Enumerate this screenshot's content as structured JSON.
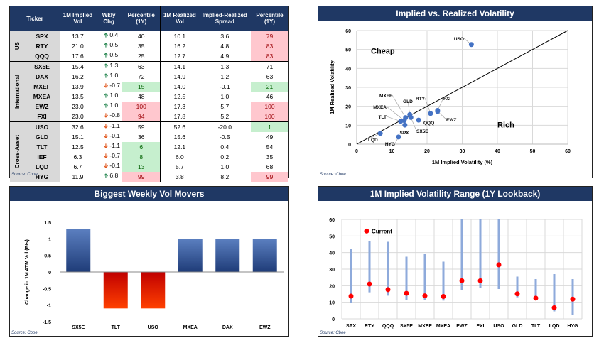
{
  "table": {
    "headers": [
      "Ticker",
      "1M Implied Vol",
      "Wkly Chg",
      "Percentile (1Y)",
      "1M Realized Vol",
      "Implied-Realized Spread",
      "Percentile (1Y)"
    ],
    "groups": [
      {
        "name": "US",
        "rows": [
          {
            "ticker": "SPX",
            "iv": "13.7",
            "chg": "0.4",
            "dir": "up",
            "pct": "40",
            "pct_c": "",
            "rv": "10.1",
            "spr": "3.6",
            "pct2": "79",
            "pct2_c": "red"
          },
          {
            "ticker": "RTY",
            "iv": "21.0",
            "chg": "0.5",
            "dir": "up",
            "pct": "35",
            "pct_c": "",
            "rv": "16.2",
            "spr": "4.8",
            "pct2": "83",
            "pct2_c": "red"
          },
          {
            "ticker": "QQQ",
            "iv": "17.6",
            "chg": "0.5",
            "dir": "up",
            "pct": "25",
            "pct_c": "",
            "rv": "12.7",
            "spr": "4.9",
            "pct2": "83",
            "pct2_c": "red"
          }
        ]
      },
      {
        "name": "International",
        "rows": [
          {
            "ticker": "SX5E",
            "iv": "15.4",
            "chg": "1.3",
            "dir": "up",
            "pct": "63",
            "pct_c": "",
            "rv": "14.1",
            "spr": "1.3",
            "pct2": "71",
            "pct2_c": ""
          },
          {
            "ticker": "DAX",
            "iv": "16.2",
            "chg": "1.0",
            "dir": "up",
            "pct": "72",
            "pct_c": "",
            "rv": "14.9",
            "spr": "1.2",
            "pct2": "63",
            "pct2_c": ""
          },
          {
            "ticker": "MXEF",
            "iv": "13.9",
            "chg": "-0.7",
            "dir": "dn",
            "pct": "15",
            "pct_c": "grn",
            "rv": "14.0",
            "spr": "-0.1",
            "pct2": "21",
            "pct2_c": "grn"
          },
          {
            "ticker": "MXEA",
            "iv": "13.5",
            "chg": "1.0",
            "dir": "up",
            "pct": "48",
            "pct_c": "",
            "rv": "12.5",
            "spr": "1.0",
            "pct2": "46",
            "pct2_c": ""
          },
          {
            "ticker": "EWZ",
            "iv": "23.0",
            "chg": "1.0",
            "dir": "up",
            "pct": "100",
            "pct_c": "red",
            "rv": "17.3",
            "spr": "5.7",
            "pct2": "100",
            "pct2_c": "red"
          },
          {
            "ticker": "FXI",
            "iv": "23.0",
            "chg": "-0.8",
            "dir": "dn",
            "pct": "94",
            "pct_c": "red",
            "rv": "17.8",
            "spr": "5.2",
            "pct2": "100",
            "pct2_c": "red"
          }
        ]
      },
      {
        "name": "Cross-Asset",
        "rows": [
          {
            "ticker": "USO",
            "iv": "32.6",
            "chg": "-1.1",
            "dir": "dn",
            "pct": "59",
            "pct_c": "",
            "rv": "52.6",
            "spr": "-20.0",
            "pct2": "1",
            "pct2_c": "grn"
          },
          {
            "ticker": "GLD",
            "iv": "15.1",
            "chg": "-0.1",
            "dir": "dn",
            "pct": "36",
            "pct_c": "",
            "rv": "15.6",
            "spr": "-0.5",
            "pct2": "49",
            "pct2_c": ""
          },
          {
            "ticker": "TLT",
            "iv": "12.5",
            "chg": "-1.1",
            "dir": "dn",
            "pct": "6",
            "pct_c": "grn",
            "rv": "12.1",
            "spr": "0.4",
            "pct2": "54",
            "pct2_c": ""
          },
          {
            "ticker": "IEF",
            "iv": "6.3",
            "chg": "-0.7",
            "dir": "dn",
            "pct": "8",
            "pct_c": "grn",
            "rv": "6.0",
            "spr": "0.2",
            "pct2": "35",
            "pct2_c": ""
          },
          {
            "ticker": "LQD",
            "iv": "6.7",
            "chg": "-0.1",
            "dir": "dn",
            "pct": "13",
            "pct_c": "grn",
            "rv": "5.7",
            "spr": "1.0",
            "pct2": "68",
            "pct2_c": ""
          },
          {
            "ticker": "HYG",
            "iv": "11.9",
            "chg": "6.8",
            "dir": "up",
            "pct": "99",
            "pct_c": "red",
            "rv": "3.8",
            "spr": "8.2",
            "pct2": "99",
            "pct2_c": "red"
          }
        ]
      }
    ],
    "source": "Source: Cboe"
  },
  "colors": {
    "navy": "#1f3864",
    "point": "#4472c4",
    "red_bg": "#ffc7ce",
    "green_bg": "#c6efce",
    "current": "#ff0000",
    "range": "#8eaadb"
  },
  "chart_data": [
    {
      "type": "scatter",
      "title": "Implied vs. Realized Volatility",
      "xlabel": "1M Implied Volatility (%)",
      "ylabel": "1M Realized Volatility",
      "xlim": [
        0,
        60
      ],
      "ylim": [
        0,
        60
      ],
      "xticks": [
        "0",
        "10",
        "20",
        "30",
        "40",
        "50",
        "60"
      ],
      "yticks": [
        "0",
        "10",
        "20",
        "30",
        "40",
        "50",
        "60"
      ],
      "annotations": [
        "Cheap",
        "Rich"
      ],
      "grid": true,
      "points": [
        {
          "label": "SPX",
          "x": 13.7,
          "y": 10.1
        },
        {
          "label": "RTY",
          "x": 21.0,
          "y": 16.2
        },
        {
          "label": "QQQ",
          "x": 17.6,
          "y": 12.7
        },
        {
          "label": "SX5E",
          "x": 15.4,
          "y": 14.1
        },
        {
          "label": "MXEF",
          "x": 13.9,
          "y": 14.0
        },
        {
          "label": "MXEA",
          "x": 13.5,
          "y": 12.5
        },
        {
          "label": "EWZ",
          "x": 23.0,
          "y": 17.3
        },
        {
          "label": "FXI",
          "x": 23.0,
          "y": 17.8
        },
        {
          "label": "USO",
          "x": 32.6,
          "y": 52.6
        },
        {
          "label": "GLD",
          "x": 15.1,
          "y": 15.6
        },
        {
          "label": "TLT",
          "x": 12.5,
          "y": 12.1
        },
        {
          "label": "LQD",
          "x": 6.7,
          "y": 5.7
        },
        {
          "label": "HYG",
          "x": 11.9,
          "y": 3.8
        }
      ],
      "source": "Source: Cboe"
    },
    {
      "type": "bar",
      "title": "Biggest Weekly Vol Movers",
      "ylabel": "Change in 1M ATM Vol (Pts)",
      "categories": [
        "SX5E",
        "TLT",
        "USO",
        "MXEA",
        "DAX",
        "EWZ"
      ],
      "values": [
        1.3,
        -1.1,
        -1.1,
        1.0,
        1.0,
        1.0
      ],
      "ylim": [
        -1.5,
        1.5
      ],
      "yticks": [
        "1.5",
        "1",
        "0.5",
        "0",
        "-0.5",
        "-1",
        "-1.5"
      ],
      "source": "Source: Cboe"
    },
    {
      "type": "range",
      "title": "1M Implied Volatility Range (1Y Lookback)",
      "legend": "Current",
      "legend_position": "top-left",
      "ylim": [
        0,
        60
      ],
      "yticks": [
        "0",
        "10",
        "20",
        "30",
        "40",
        "50",
        "60"
      ],
      "grid": true,
      "categories": [
        "SPX",
        "RTY",
        "QQQ",
        "SX5E",
        "MXEF",
        "MXEA",
        "EWZ",
        "FXI",
        "USO",
        "GLD",
        "TLT",
        "LQD",
        "HYG"
      ],
      "low": [
        9.5,
        16,
        14,
        11.5,
        11.5,
        11,
        17.5,
        18.5,
        18,
        13,
        12,
        4.5,
        2.5
      ],
      "high": [
        42,
        47,
        46.5,
        37.5,
        39,
        34.5,
        60,
        60,
        60,
        25.5,
        24,
        27,
        24
      ],
      "current": [
        13.7,
        21.0,
        17.6,
        15.4,
        13.9,
        13.5,
        23.0,
        23.0,
        32.6,
        15.1,
        12.5,
        6.7,
        11.9
      ],
      "source": "Source: Cboe"
    }
  ]
}
